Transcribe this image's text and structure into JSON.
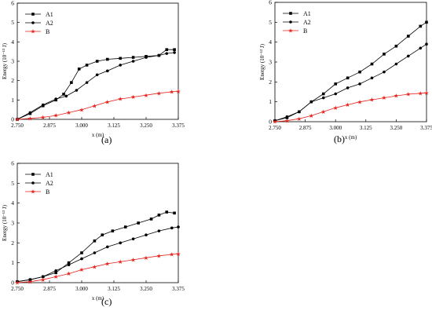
{
  "panel_labels": [
    "(a)",
    "(b)",
    "(c)"
  ],
  "series_colors": {
    "A1": "#000000",
    "A2": "#000000",
    "B": "#e8231e"
  },
  "chart_data": [
    {
      "type": "line",
      "panel": "(a)",
      "xlabel": "x (m)",
      "ylabel": "Energy (10⁻¹³ J)",
      "xlim": [
        2.75,
        3.375
      ],
      "ylim": [
        0,
        6
      ],
      "xticks": [
        2.75,
        2.875,
        3.0,
        3.125,
        3.25,
        3.375
      ],
      "xtick_labels": [
        "2.750",
        "2.875",
        "3.000",
        "3.125",
        "3.250",
        "3.375"
      ],
      "yticks": [
        0,
        1,
        2,
        3,
        4,
        5,
        6
      ],
      "legend": "top-left",
      "series": [
        {
          "name": "A1",
          "marker": "square",
          "x": [
            2.75,
            2.8,
            2.85,
            2.9,
            2.93,
            2.96,
            2.99,
            3.02,
            3.06,
            3.1,
            3.15,
            3.2,
            3.25,
            3.3,
            3.33,
            3.36
          ],
          "y": [
            0,
            0.3,
            0.7,
            1.0,
            1.3,
            1.9,
            2.6,
            2.8,
            3.0,
            3.1,
            3.15,
            3.2,
            3.25,
            3.3,
            3.6,
            3.6
          ]
        },
        {
          "name": "A2",
          "marker": "circle",
          "x": [
            2.75,
            2.8,
            2.85,
            2.9,
            2.94,
            2.98,
            3.02,
            3.06,
            3.1,
            3.15,
            3.2,
            3.25,
            3.3,
            3.33,
            3.36
          ],
          "y": [
            0,
            0.35,
            0.75,
            1.05,
            1.2,
            1.5,
            1.9,
            2.3,
            2.5,
            2.8,
            3.0,
            3.2,
            3.3,
            3.4,
            3.45
          ]
        },
        {
          "name": "B",
          "marker": "star",
          "x": [
            2.75,
            2.8,
            2.85,
            2.9,
            2.95,
            3.0,
            3.05,
            3.1,
            3.15,
            3.2,
            3.25,
            3.3,
            3.35,
            3.375
          ],
          "y": [
            0,
            0.05,
            0.1,
            0.2,
            0.35,
            0.5,
            0.7,
            0.9,
            1.05,
            1.15,
            1.25,
            1.35,
            1.42,
            1.45
          ]
        }
      ]
    },
    {
      "type": "line",
      "panel": "(b)",
      "xlabel": "x (m)",
      "ylabel": "Energy (10⁻¹³ J)",
      "xlim": [
        2.75,
        3.375
      ],
      "ylim": [
        0,
        6
      ],
      "xticks": [
        2.75,
        2.875,
        3.0,
        3.125,
        3.25,
        3.375
      ],
      "xtick_labels": [
        "2.750",
        "2.875",
        "3.000",
        "3.125",
        "3.250",
        "3.375"
      ],
      "yticks": [
        0,
        1,
        2,
        3,
        4,
        5,
        6
      ],
      "legend": "top-left",
      "series": [
        {
          "name": "A1",
          "marker": "square",
          "x": [
            2.75,
            2.8,
            2.85,
            2.9,
            2.95,
            3.0,
            3.05,
            3.1,
            3.15,
            3.2,
            3.25,
            3.3,
            3.35,
            3.375
          ],
          "y": [
            0.05,
            0.2,
            0.5,
            1.0,
            1.4,
            1.9,
            2.2,
            2.5,
            2.9,
            3.4,
            3.8,
            4.3,
            4.8,
            5.0
          ]
        },
        {
          "name": "A2",
          "marker": "circle",
          "x": [
            2.75,
            2.8,
            2.85,
            2.9,
            2.95,
            3.0,
            3.05,
            3.1,
            3.15,
            3.2,
            3.25,
            3.3,
            3.35,
            3.375
          ],
          "y": [
            0.05,
            0.25,
            0.5,
            1.0,
            1.2,
            1.4,
            1.7,
            1.9,
            2.2,
            2.5,
            2.9,
            3.3,
            3.7,
            3.9
          ]
        },
        {
          "name": "B",
          "marker": "star",
          "x": [
            2.75,
            2.8,
            2.85,
            2.9,
            2.95,
            3.0,
            3.05,
            3.1,
            3.15,
            3.2,
            3.25,
            3.3,
            3.35,
            3.375
          ],
          "y": [
            0,
            0.05,
            0.15,
            0.3,
            0.5,
            0.7,
            0.85,
            1.0,
            1.1,
            1.2,
            1.3,
            1.38,
            1.43,
            1.45
          ]
        }
      ]
    },
    {
      "type": "line",
      "panel": "(c)",
      "xlabel": "x (m)",
      "ylabel": "Energy (10⁻¹³ J)",
      "xlim": [
        2.75,
        3.375
      ],
      "ylim": [
        0,
        6
      ],
      "xticks": [
        2.75,
        2.875,
        3.0,
        3.125,
        3.25,
        3.375
      ],
      "xtick_labels": [
        "2.750",
        "2.875",
        "3.000",
        "3.125",
        "3.250",
        "3.375"
      ],
      "yticks": [
        0,
        1,
        2,
        3,
        4,
        5,
        6
      ],
      "legend": "top-left",
      "series": [
        {
          "name": "A1",
          "marker": "square",
          "x": [
            2.75,
            2.8,
            2.85,
            2.9,
            2.95,
            3.0,
            3.05,
            3.08,
            3.12,
            3.17,
            3.22,
            3.27,
            3.3,
            3.33,
            3.36
          ],
          "y": [
            0.05,
            0.15,
            0.3,
            0.5,
            1.0,
            1.5,
            2.1,
            2.4,
            2.6,
            2.8,
            3.0,
            3.2,
            3.4,
            3.55,
            3.5
          ]
        },
        {
          "name": "A2",
          "marker": "circle",
          "x": [
            2.75,
            2.8,
            2.85,
            2.9,
            2.95,
            3.0,
            3.05,
            3.1,
            3.15,
            3.2,
            3.25,
            3.3,
            3.35,
            3.375
          ],
          "y": [
            0.05,
            0.15,
            0.3,
            0.6,
            0.9,
            1.2,
            1.5,
            1.8,
            2.0,
            2.2,
            2.4,
            2.6,
            2.75,
            2.8
          ]
        },
        {
          "name": "B",
          "marker": "star",
          "x": [
            2.75,
            2.8,
            2.85,
            2.9,
            2.95,
            3.0,
            3.05,
            3.1,
            3.15,
            3.2,
            3.25,
            3.3,
            3.35,
            3.375
          ],
          "y": [
            0,
            0.05,
            0.15,
            0.3,
            0.45,
            0.65,
            0.8,
            0.95,
            1.05,
            1.15,
            1.25,
            1.35,
            1.42,
            1.45
          ]
        }
      ]
    }
  ]
}
